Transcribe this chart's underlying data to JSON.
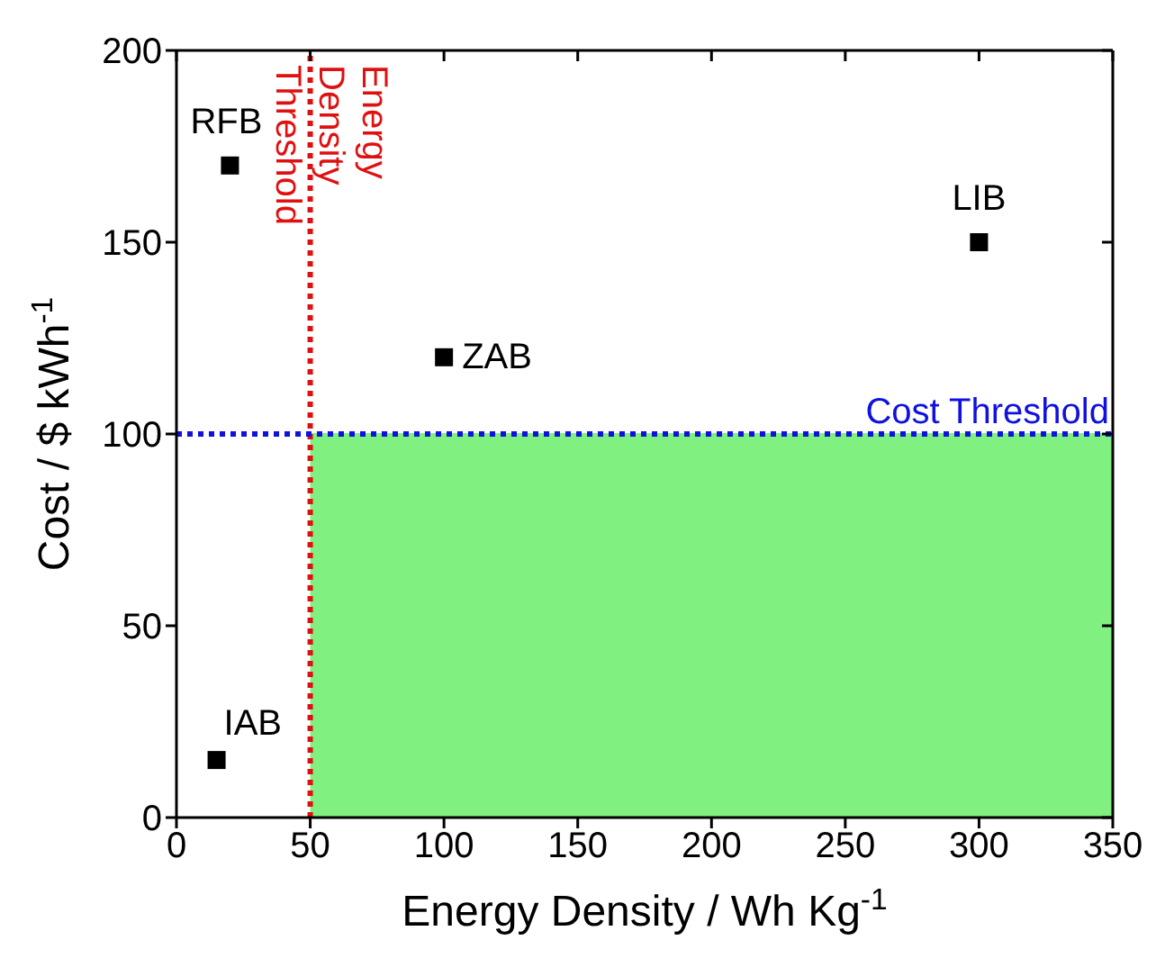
{
  "chart_data": {
    "type": "scatter",
    "xlabel": "Energy Density / Wh Kg$^{-1}$",
    "ylabel": "Cost / $ kWh$^{-1}$",
    "xlim": [
      0,
      350
    ],
    "xticks": [
      0,
      50,
      100,
      150,
      200,
      250,
      300,
      350
    ],
    "ylim": [
      0,
      200
    ],
    "yticks": [
      0,
      50,
      100,
      150,
      200
    ],
    "grid": false,
    "legend": false,
    "series": [
      {
        "type": "area",
        "color": "#80f080",
        "marker": "none",
        "x": [
          50,
          350
        ],
        "values": [
          100,
          100
        ]
      },
      {
        "color": "#000000",
        "marker": "square",
        "x": [
          20,
          100,
          300,
          15
        ],
        "values": [
          170,
          120,
          150,
          15
        ]
      }
    ],
    "ref_lines": [
      {
        "axis": "x",
        "value": 50,
        "label": "Energy Density Threshold",
        "color": "#e01010",
        "line_style": "dotted"
      },
      {
        "axis": "y",
        "value": 100,
        "label": "Cost Threshold",
        "color": "#1010e0",
        "line_style": "dotted"
      }
    ],
    "annotations": [
      {
        "text": "RFB",
        "x": 20,
        "y": 170
      },
      {
        "text": "ZAB",
        "x": 100,
        "y": 120
      },
      {
        "text": "LIB",
        "x": 300,
        "y": 150
      },
      {
        "text": "IAB",
        "x": 15,
        "y": 15
      }
    ]
  }
}
